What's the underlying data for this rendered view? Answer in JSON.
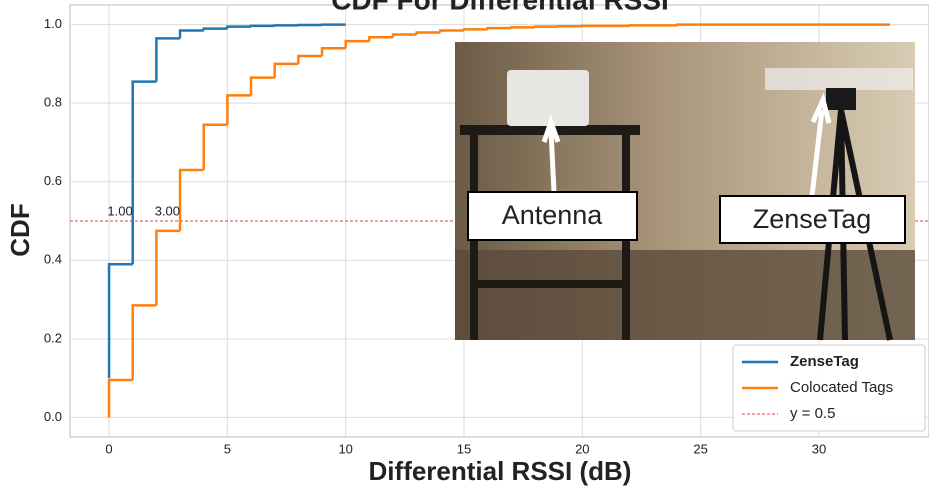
{
  "chart_data": {
    "type": "step",
    "title": "CDF For Differential RSSI",
    "xlabel": "Differential RSSI (dB)",
    "ylabel": "CDF",
    "xlim": [
      -1.65,
      34.65
    ],
    "ylim": [
      -0.05,
      1.05
    ],
    "xticks": [
      0,
      5,
      10,
      15,
      20,
      25,
      30
    ],
    "yticks": [
      {
        "value": 0,
        "label": "0.0"
      },
      0.2,
      0.4,
      0.6,
      0.8,
      {
        "value": 1,
        "label": "1.0"
      }
    ],
    "grid": true,
    "legend": "lower right",
    "series": [
      {
        "name": "ZenseTag",
        "color": "#1f77b4",
        "x": [
          0,
          0,
          1,
          2,
          3,
          4,
          5,
          6,
          7,
          8,
          9,
          10
        ],
        "values": [
          0.1,
          0.39,
          0.855,
          0.965,
          0.985,
          0.99,
          0.995,
          0.997,
          0.998,
          0.999,
          1.0,
          1.0
        ]
      },
      {
        "name": "Colocated Tags",
        "color": "#ff7f0e",
        "x": [
          0,
          0,
          1,
          2,
          3,
          4,
          5,
          6,
          7,
          8,
          9,
          10,
          11,
          12,
          13,
          14,
          15,
          16,
          17,
          18,
          19,
          20,
          22,
          24,
          33
        ],
        "values": [
          0.0,
          0.095,
          0.285,
          0.475,
          0.63,
          0.745,
          0.82,
          0.865,
          0.9,
          0.92,
          0.94,
          0.958,
          0.968,
          0.975,
          0.98,
          0.985,
          0.988,
          0.991,
          0.993,
          0.995,
          0.996,
          0.997,
          0.998,
          1.0,
          1.0
        ]
      }
    ],
    "hlines": [
      {
        "y": 0.5,
        "name": "y = 0.5",
        "color": "#e8403a"
      }
    ],
    "annotations": [
      {
        "x": 1,
        "y": 0.5,
        "text": "1.00"
      },
      {
        "x": 3,
        "y": 0.5,
        "text": "3.00"
      }
    ],
    "inset_labels": [
      "Antenna",
      "ZenseTag"
    ]
  }
}
